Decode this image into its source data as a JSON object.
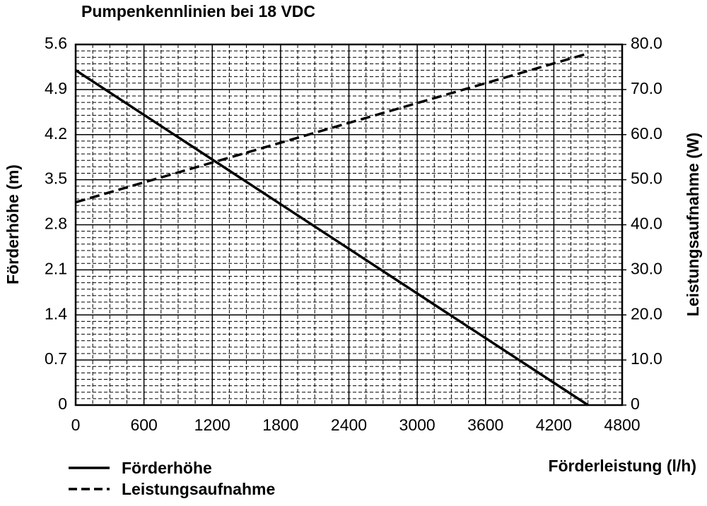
{
  "chart_data": {
    "type": "line",
    "title": "Pumpenkennlinien bei 18 VDC",
    "x_label": "Förderleistung (l/h)",
    "y_label": "Förderhöhe (m)",
    "y2_label": "Leistungsaufnahme (W)",
    "x": [
      0,
      4500
    ],
    "series": [
      {
        "name": "Förderhöhe",
        "color": "#000000",
        "line_style": "solid",
        "values": [
          5.2,
          0
        ]
      },
      {
        "name": "Leistungsaufnahme",
        "color": "#000000",
        "line_style": "dashed",
        "axis": "y2",
        "values": [
          45,
          78
        ]
      }
    ],
    "xlim": [
      0,
      4800
    ],
    "xticks": [
      0,
      600,
      1200,
      1800,
      2400,
      3000,
      3600,
      4200,
      4800
    ],
    "ylim": [
      0,
      5.6
    ],
    "yticks": [
      0,
      0.7,
      1.4,
      2.1,
      2.8,
      3.5,
      4.2,
      4.9,
      5.6
    ],
    "y2lim": [
      0,
      80
    ],
    "y2ticks": [
      0,
      {
        "value": 10,
        "label": "10.0"
      },
      {
        "value": 20,
        "label": "20.0"
      },
      {
        "value": 30,
        "label": "30.0"
      },
      {
        "value": 40,
        "label": "40.0"
      },
      {
        "value": 50,
        "label": "50.0"
      },
      {
        "value": 60,
        "label": "60.0"
      },
      {
        "value": 70,
        "label": "70.0"
      },
      {
        "value": 80,
        "label": "80.0"
      }
    ],
    "grid": true,
    "minor_grid": true
  }
}
